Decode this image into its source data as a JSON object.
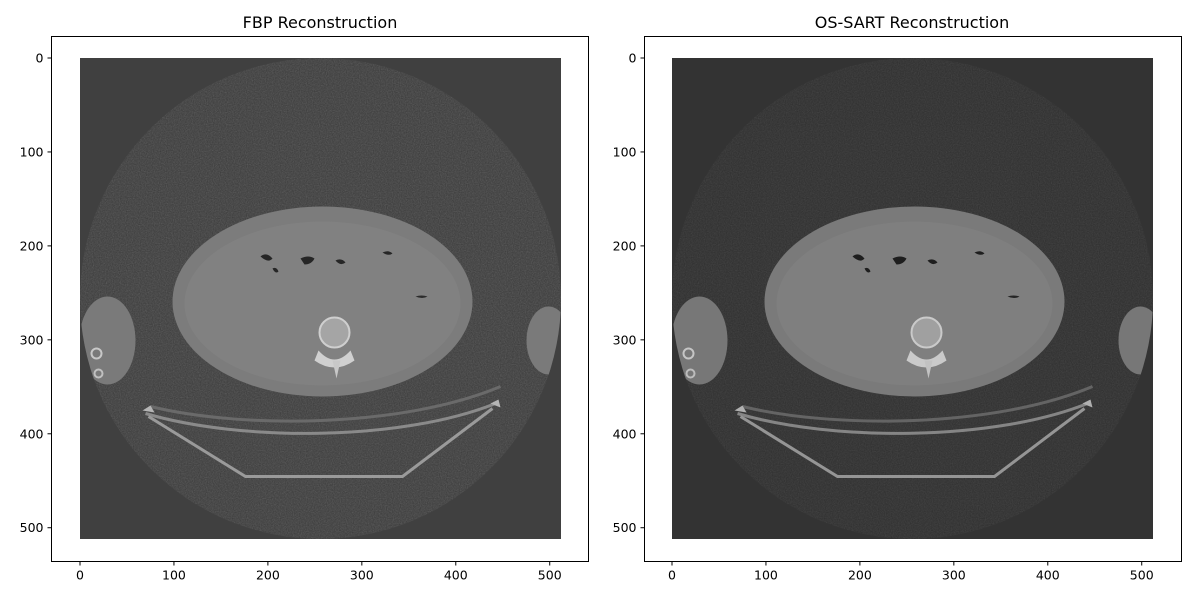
{
  "panels": [
    {
      "title": "FBP Reconstruction",
      "x_ticks": [
        "0",
        "100",
        "200",
        "300",
        "400",
        "500"
      ],
      "y_ticks": [
        "0",
        "100",
        "200",
        "300",
        "400",
        "500"
      ],
      "image_extent": [
        0,
        512
      ],
      "background_color": "#404040",
      "noise_opacity": 0.26
    },
    {
      "title": "OS-SART Reconstruction",
      "x_ticks": [
        "0",
        "100",
        "200",
        "300",
        "400",
        "500"
      ],
      "y_ticks": [
        "0",
        "100",
        "200",
        "300",
        "400",
        "500"
      ],
      "image_extent": [
        0,
        512
      ],
      "background_color": "#333333",
      "noise_opacity": 0.16
    }
  ]
}
